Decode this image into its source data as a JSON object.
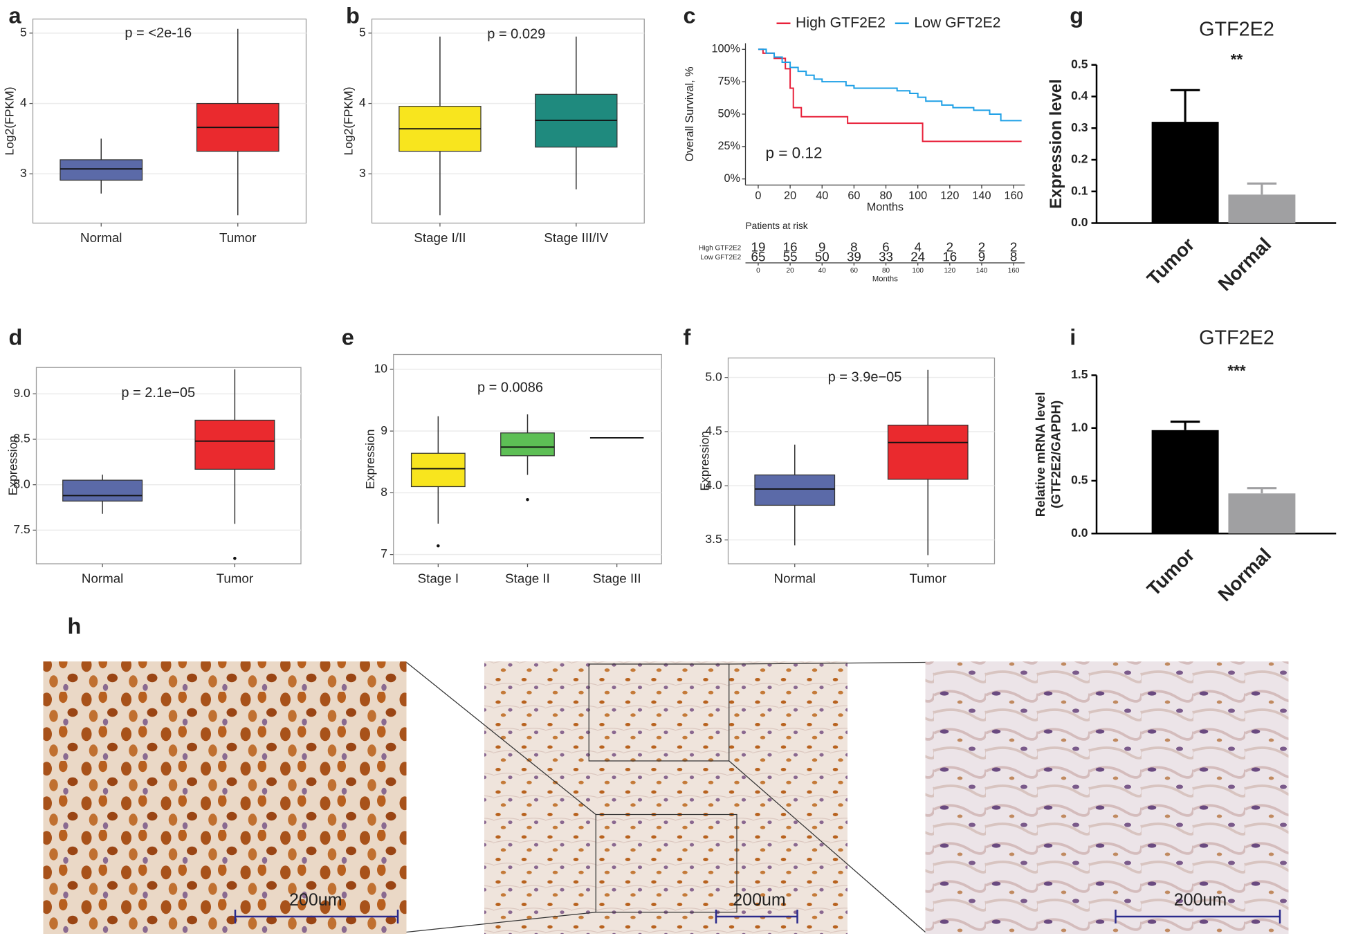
{
  "chart_data": [
    {
      "type": "box",
      "label": "a",
      "annotation": "p = <2e-16",
      "ylabel": "Log2(FPKM)",
      "categories": [
        "Normal",
        "Tumor"
      ],
      "colors": [
        "#5b6aa8",
        "#ea2a2e"
      ],
      "boxes": [
        {
          "whisker_low": 2.72,
          "q1": 2.91,
          "median": 3.07,
          "q3": 3.2,
          "whisker_high": 3.5
        },
        {
          "whisker_low": 2.41,
          "q1": 3.32,
          "median": 3.66,
          "q3": 4.0,
          "whisker_high": 5.06
        }
      ],
      "ylim": [
        2.3,
        5.2
      ],
      "yticks": [
        3,
        4,
        5
      ],
      "grid": true
    },
    {
      "type": "box",
      "label": "b",
      "annotation": "p = 0.029",
      "ylabel": "Log2(FPKM)",
      "categories": [
        "Stage I/II",
        "Stage III/IV"
      ],
      "colors": [
        "#f8e51e",
        "#1f8a7e"
      ],
      "boxes": [
        {
          "whisker_low": 2.41,
          "q1": 3.32,
          "median": 3.64,
          "q3": 3.96,
          "whisker_high": 4.95
        },
        {
          "whisker_low": 2.78,
          "q1": 3.38,
          "median": 3.76,
          "q3": 4.13,
          "whisker_high": 4.95
        }
      ],
      "ylim": [
        2.3,
        5.2
      ],
      "yticks": [
        3,
        4,
        5
      ],
      "grid": true
    },
    {
      "type": "survival",
      "label": "c",
      "annotation": "p = 0.12",
      "ylabel": "Overall Survival, %",
      "xlabel": "Months",
      "series": [
        {
          "name": "High GTF2E2",
          "color": "#e8213a",
          "x": [
            0,
            3,
            10,
            17,
            20,
            22,
            27,
            56,
            103,
            165
          ],
          "values": [
            100,
            97,
            93,
            85,
            70,
            55,
            48,
            43,
            29,
            29
          ]
        },
        {
          "name": "Low GFT2E2",
          "color": "#1ea0e6",
          "x": [
            0,
            5,
            10,
            15,
            20,
            25,
            30,
            35,
            40,
            55,
            60,
            87,
            95,
            100,
            105,
            115,
            122,
            135,
            145,
            152,
            165
          ],
          "values": [
            100,
            97,
            94,
            90,
            86,
            83,
            80,
            77,
            75,
            72,
            70,
            68,
            66,
            63,
            60,
            57,
            55,
            53,
            50,
            45,
            45
          ]
        }
      ],
      "xlim": [
        -8,
        167
      ],
      "xticks": [
        0,
        20,
        40,
        60,
        80,
        100,
        120,
        140,
        160
      ],
      "ylim": [
        -4.7,
        104.7
      ],
      "yticks": [
        {
          "value": 0,
          "label": "0%"
        },
        {
          "value": 25,
          "label": "25%"
        },
        {
          "value": 50,
          "label": "50%"
        },
        {
          "value": 75,
          "label": "75%"
        },
        {
          "value": 100,
          "label": "100%"
        }
      ],
      "risk_table": {
        "title": "Patients at risk",
        "xlabel": "Months",
        "rows": [
          {
            "name": "High GTF2E2",
            "values": [
              19,
              16,
              9,
              8,
              6,
              4,
              2,
              2,
              2
            ]
          },
          {
            "name": "Low GFT2E2",
            "values": [
              65,
              55,
              50,
              39,
              33,
              24,
              16,
              9,
              8
            ]
          }
        ]
      }
    },
    {
      "type": "bar",
      "label": "g",
      "title": "GTF2E2",
      "annotation": "**",
      "ylabel": "Expression level",
      "categories": [
        "Tumor",
        "Normal"
      ],
      "colors": [
        "#000000",
        "#a0a0a2"
      ],
      "values": [
        0.32,
        0.09
      ],
      "errors": [
        0.1,
        0.035
      ],
      "ylim": [
        0,
        0.5
      ],
      "yticks": [
        {
          "value": 0,
          "label": "0.0"
        },
        {
          "value": 0.1,
          "label": "0.1"
        },
        {
          "value": 0.2,
          "label": "0.2"
        },
        {
          "value": 0.3,
          "label": "0.3"
        },
        {
          "value": 0.4,
          "label": "0.4"
        },
        {
          "value": 0.5,
          "label": "0.5"
        }
      ]
    },
    {
      "type": "box",
      "label": "d",
      "annotation": "p = 2.1e−05",
      "ylabel": "Expression",
      "categories": [
        "Normal",
        "Tumor"
      ],
      "colors": [
        "#5b6aa8",
        "#ea2a2e"
      ],
      "boxes": [
        {
          "whisker_low": 7.68,
          "q1": 7.82,
          "median": 7.88,
          "q3": 8.05,
          "whisker_high": 8.11
        },
        {
          "whisker_low": 7.57,
          "q1": 8.17,
          "median": 8.48,
          "q3": 8.71,
          "whisker_high": 9.27
        }
      ],
      "outliers": [
        [],
        [
          7.19
        ]
      ],
      "ylim": [
        7.13,
        9.29
      ],
      "yticks": [
        {
          "value": 7.5,
          "label": "7.5"
        },
        {
          "value": 8,
          "label": "8.0"
        },
        {
          "value": 8.5,
          "label": "8.5"
        },
        {
          "value": 9,
          "label": "9.0"
        }
      ],
      "grid": true
    },
    {
      "type": "box",
      "label": "e",
      "annotation": "p = 0.0086",
      "ylabel": "Expression",
      "categories": [
        "Stage I",
        "Stage II",
        "Stage III"
      ],
      "colors": [
        "#f8e51e",
        "#5dbf55",
        "#ffffff"
      ],
      "boxes": [
        {
          "whisker_low": 7.5,
          "q1": 8.1,
          "median": 8.39,
          "q3": 8.64,
          "whisker_high": 9.24
        },
        {
          "whisker_low": 8.29,
          "q1": 8.6,
          "median": 8.74,
          "q3": 8.97,
          "whisker_high": 9.27
        },
        {
          "whisker_low": 8.89,
          "q1": 8.89,
          "median": 8.89,
          "q3": 8.89,
          "whisker_high": 8.89
        }
      ],
      "outliers": [
        [
          7.14
        ],
        [
          7.89
        ],
        []
      ],
      "ylim": [
        6.85,
        10.24
      ],
      "yticks": [
        7,
        8,
        9,
        10
      ],
      "grid": true
    },
    {
      "type": "box",
      "label": "f",
      "annotation": "p = 3.9e−05",
      "ylabel": "Expression",
      "categories": [
        "Normal",
        "Tumor"
      ],
      "colors": [
        "#5b6aa8",
        "#ea2a2e"
      ],
      "boxes": [
        {
          "whisker_low": 3.45,
          "q1": 3.82,
          "median": 3.97,
          "q3": 4.1,
          "whisker_high": 4.38
        },
        {
          "whisker_low": 3.36,
          "q1": 4.06,
          "median": 4.4,
          "q3": 4.56,
          "whisker_high": 5.07
        }
      ],
      "ylim": [
        3.28,
        5.18
      ],
      "yticks": [
        {
          "value": 3.5,
          "label": "3.5"
        },
        {
          "value": 4,
          "label": "4.0"
        },
        {
          "value": 4.5,
          "label": "4.5"
        },
        {
          "value": 5,
          "label": "5.0"
        }
      ],
      "grid": true
    },
    {
      "type": "bar",
      "label": "i",
      "title": "GTF2E2",
      "annotation": "***",
      "ylabel": [
        "Relative  mRNA level",
        "(GTF2E2/GAPDH)"
      ],
      "categories": [
        "Tumor",
        "Normal"
      ],
      "colors": [
        "#000000",
        "#a0a0a2"
      ],
      "values": [
        0.98,
        0.38
      ],
      "errors": [
        0.08,
        0.05
      ],
      "ylim": [
        0,
        1.5
      ],
      "yticks": [
        {
          "value": 0,
          "label": "0.0"
        },
        {
          "value": 0.5,
          "label": "0.5"
        },
        {
          "value": 1,
          "label": "1.0"
        },
        {
          "value": 1.5,
          "label": "1.5"
        }
      ]
    }
  ],
  "panel_h": {
    "label": "h",
    "scale_bars": [
      "200um",
      "200um",
      "200um"
    ]
  }
}
